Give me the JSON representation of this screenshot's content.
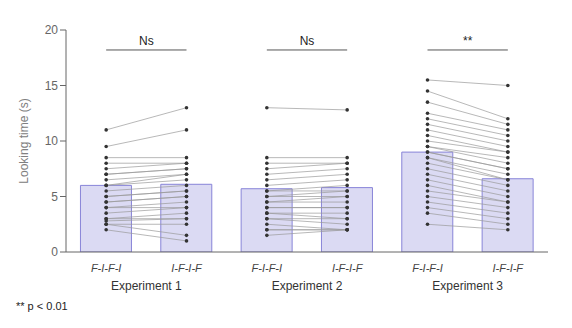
{
  "chart_data": {
    "type": "bar",
    "ylabel": "Looking time (s)",
    "ylim": [
      0,
      20
    ],
    "yticks": [
      0,
      5,
      10,
      15,
      20
    ],
    "grid": false,
    "categories": [
      "F-I-F-I",
      "I-F-I-F",
      "F-I-F-I",
      "I-F-I-F",
      "F-I-F-I",
      "I-F-I-F"
    ],
    "values": [
      6.0,
      6.1,
      5.7,
      5.8,
      9.0,
      6.6
    ],
    "groups": [
      {
        "label": "Experiment 1",
        "significance": "Ns",
        "points": [
          [
            11.0,
            9.5,
            8.5,
            8.0,
            7.5,
            7.0,
            7.0,
            6.5,
            6.0,
            6.0,
            5.5,
            5.0,
            5.0,
            4.5,
            4.5,
            4.0,
            4.0,
            3.5,
            3.0,
            3.0,
            2.8,
            2.5,
            2.5,
            2.0
          ],
          [
            13.0,
            11.0,
            8.5,
            8.0,
            8.0,
            7.5,
            7.5,
            7.0,
            7.0,
            6.5,
            6.0,
            5.5,
            5.5,
            5.0,
            5.0,
            4.5,
            4.0,
            4.0,
            3.5,
            3.0,
            3.0,
            2.5,
            1.5,
            1.0
          ]
        ]
      },
      {
        "label": "Experiment 2",
        "significance": "Ns",
        "points": [
          [
            13.0,
            8.5,
            8.0,
            7.5,
            7.0,
            6.5,
            6.0,
            5.5,
            5.5,
            5.0,
            5.0,
            4.5,
            4.5,
            4.0,
            4.0,
            3.5,
            3.5,
            3.0,
            3.0,
            2.5,
            2.0,
            2.0,
            1.5
          ],
          [
            12.8,
            8.5,
            8.0,
            8.0,
            7.5,
            7.0,
            6.5,
            6.0,
            5.5,
            5.5,
            5.0,
            5.0,
            4.5,
            4.0,
            4.0,
            3.5,
            3.0,
            3.0,
            2.5,
            2.0,
            2.0,
            2.0,
            2.0
          ]
        ]
      },
      {
        "label": "Experiment 3",
        "significance": "**",
        "points": [
          [
            15.5,
            14.5,
            13.5,
            12.5,
            12.0,
            11.5,
            11.0,
            10.5,
            10.0,
            9.5,
            9.5,
            9.0,
            9.0,
            8.5,
            8.5,
            8.0,
            7.5,
            7.0,
            6.5,
            6.0,
            5.5,
            5.0,
            4.5,
            4.0,
            3.5,
            2.5
          ],
          [
            15.0,
            12.0,
            11.5,
            11.0,
            10.5,
            10.0,
            9.5,
            9.0,
            9.0,
            8.5,
            8.0,
            7.5,
            7.5,
            7.0,
            6.5,
            6.5,
            6.0,
            5.5,
            5.0,
            4.5,
            4.5,
            4.0,
            3.5,
            3.0,
            2.5,
            2.0
          ]
        ]
      }
    ],
    "footnote": "** p < 0.01"
  }
}
